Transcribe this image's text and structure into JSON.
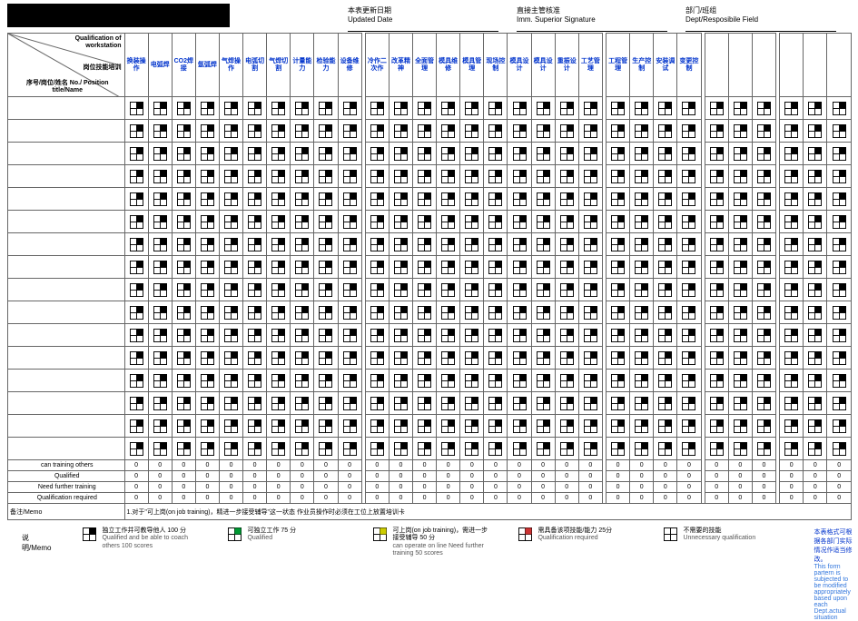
{
  "header": {
    "updated_cn": "本表更新日期",
    "updated_en": "Updated Date",
    "sig_cn": "直接主管核准",
    "sig_en": "Imm. Superior Signature",
    "dept_cn": "部门/班组",
    "dept_en": "Dept/Resposibile Field"
  },
  "corner": {
    "top_en": "Qualification of workstation",
    "mid_cn": "岗位技能培训",
    "bot": "序号/岗位/姓名\nNo./ Position title/Name"
  },
  "skill_groups": [
    [
      "换装操作",
      "电弧焊",
      "CO2焊接",
      "氩弧焊",
      "气焊操作",
      "电弧切割",
      "气焊切割",
      "计量能力",
      "检验能力",
      "设备维修"
    ],
    [
      "冷作二次作",
      "改革精神",
      "全面管理",
      "模具维修",
      "模具管理",
      "现场控制",
      "模具设计",
      "模具设计",
      "重振设计",
      "工艺管理"
    ],
    [
      "工程管理",
      "生产控制",
      "安装调试",
      "变更控制"
    ],
    [
      "",
      "",
      ""
    ],
    [
      "",
      "",
      ""
    ]
  ],
  "num_body_rows": 16,
  "summary_rows": [
    {
      "label": "can training others"
    },
    {
      "label": "Qualified"
    },
    {
      "label": "Need further training"
    },
    {
      "label": "Qualification required"
    }
  ],
  "memo_label": "备注/Memo",
  "memo_text": "1.对于\"可上岗(on job training)，精进一步接受辅导\"这一状态 作业员操作时必须在工位上放置培训卡",
  "legend_title": "说明/Memo",
  "legend": [
    {
      "color_tr": "#000000",
      "cn": "独立工作并可教导他人 100 分",
      "en": "Qualified and be able to coach others 100 scores"
    },
    {
      "color_tr": "#009933",
      "cn": "可独立工作 75 分",
      "en": "Qualified"
    },
    {
      "color_tr": "#cccc00",
      "cn": "可上岗(on job training)，需进一步接受辅导 50 分",
      "en": "can operate on line Need further training 50 scores"
    },
    {
      "color_tr": "#cc3333",
      "cn": "需具备该项技能/能力 25分",
      "en": "Qualification required"
    },
    {
      "color_tr": null,
      "cn": "不需要的技能",
      "en": "Unnecessary qualification"
    }
  ],
  "form_note": {
    "cn": "本表格式可根据各部门实际情况作适当修改。",
    "en": "This form partern is subjected to be modified appropriately based upon each Dept.actual situation"
  },
  "colors": {
    "link_blue": "#0033cc",
    "light_blue": "#3377dd",
    "border": "#666666"
  }
}
